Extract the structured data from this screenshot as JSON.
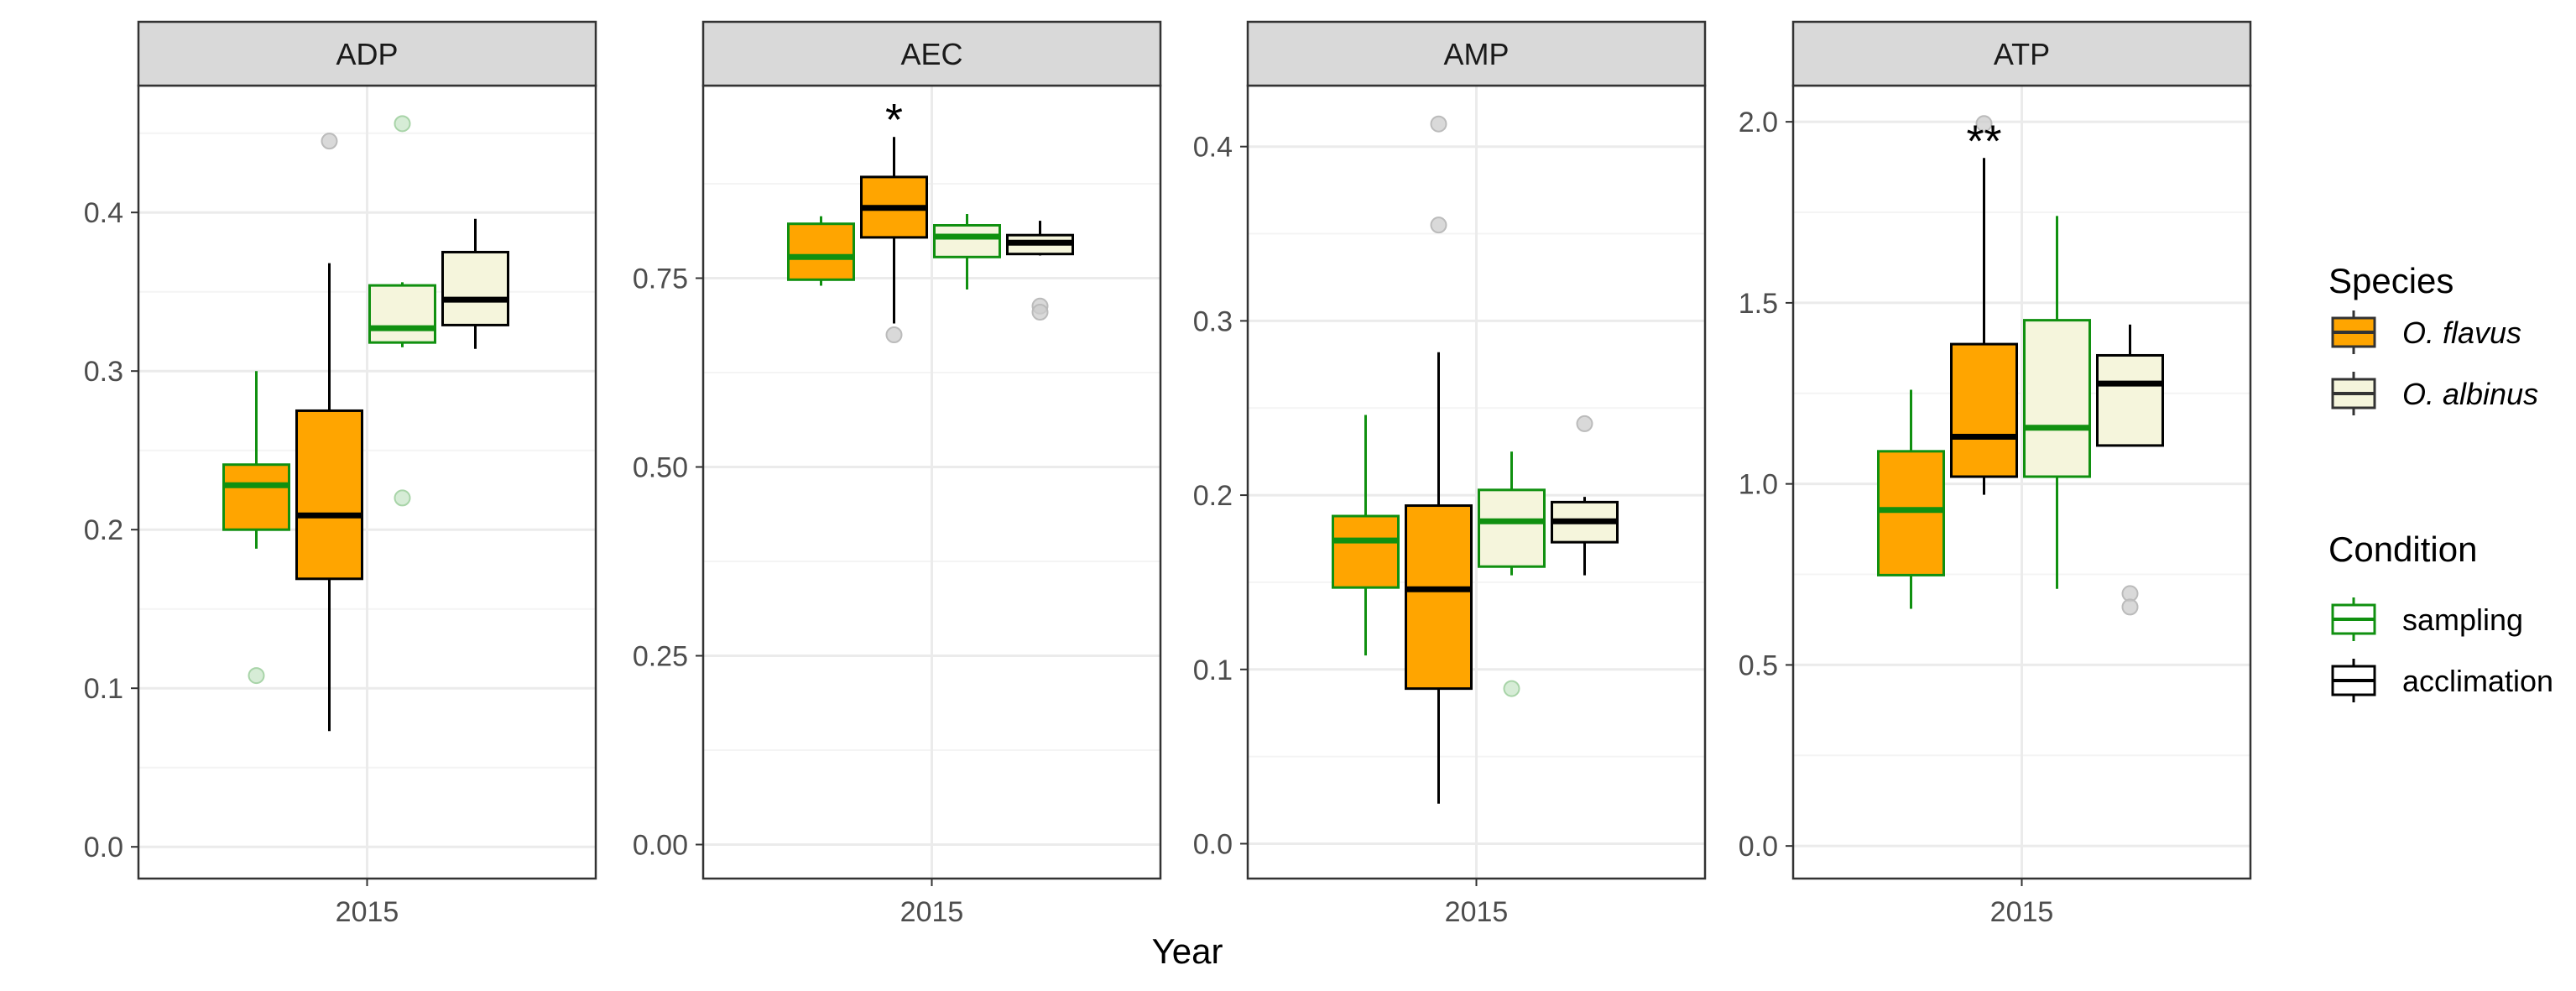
{
  "chart_data": {
    "type": "boxplot",
    "xlabel": "Year",
    "ylabel": "",
    "x_category": "2015",
    "grid": true,
    "legend_placement": "right",
    "colors": {
      "O. flavus": "#FFA500",
      "O. albinus": "#F5F5DC",
      "sampling": "#109010",
      "acclimation": "#000000",
      "outlier_fill": "#cccccc",
      "strip_fill": "#d9d9d9",
      "panel_border": "#333333",
      "grid_major": "#ebebeb",
      "grid_minor": "#f4f4f4"
    },
    "legend": {
      "species_title": "Species",
      "species": [
        {
          "label": "O. flavus",
          "fill": "#FFA500"
        },
        {
          "label": "O. albinus",
          "fill": "#F5F5DC"
        }
      ],
      "condition_title": "Condition",
      "conditions": [
        {
          "label": "sampling",
          "stroke": "#109010"
        },
        {
          "label": "acclimation",
          "stroke": "#000000"
        }
      ]
    },
    "panels": [
      {
        "title": "ADP",
        "ylim": [
          -0.02,
          0.48
        ],
        "yticks": [
          0.0,
          0.1,
          0.2,
          0.3,
          0.4
        ],
        "yticklabels": [
          "0.0",
          "0.1",
          "0.2",
          "0.3",
          "0.4"
        ],
        "significance": "",
        "boxes": [
          {
            "species": "O. flavus",
            "condition": "sampling",
            "min": 0.188,
            "q1": 0.2,
            "median": 0.228,
            "q3": 0.241,
            "max": 0.3,
            "outliers": [
              0.108
            ]
          },
          {
            "species": "O. flavus",
            "condition": "acclimation",
            "min": 0.073,
            "q1": 0.169,
            "median": 0.209,
            "q3": 0.275,
            "max": 0.368,
            "outliers": [
              0.445
            ]
          },
          {
            "species": "O. albinus",
            "condition": "sampling",
            "min": 0.315,
            "q1": 0.318,
            "median": 0.327,
            "q3": 0.354,
            "max": 0.356,
            "outliers": [
              0.456,
              0.22
            ]
          },
          {
            "species": "O. albinus",
            "condition": "acclimation",
            "min": 0.314,
            "q1": 0.329,
            "median": 0.345,
            "q3": 0.375,
            "max": 0.396,
            "outliers": []
          }
        ]
      },
      {
        "title": "AEC",
        "ylim": [
          -0.045,
          1.005
        ],
        "yticks": [
          0.0,
          0.25,
          0.5,
          0.75
        ],
        "yticklabels": [
          "0.00",
          "0.25",
          "0.50",
          "0.75"
        ],
        "significance": "*",
        "boxes": [
          {
            "species": "O. flavus",
            "condition": "sampling",
            "min": 0.74,
            "q1": 0.748,
            "median": 0.778,
            "q3": 0.822,
            "max": 0.832,
            "outliers": []
          },
          {
            "species": "O. flavus",
            "condition": "acclimation",
            "min": 0.69,
            "q1": 0.804,
            "median": 0.843,
            "q3": 0.884,
            "max": 0.937,
            "outliers": [
              0.675
            ]
          },
          {
            "species": "O. albinus",
            "condition": "sampling",
            "min": 0.735,
            "q1": 0.778,
            "median": 0.805,
            "q3": 0.82,
            "max": 0.835,
            "outliers": []
          },
          {
            "species": "O. albinus",
            "condition": "acclimation",
            "min": 0.78,
            "q1": 0.782,
            "median": 0.797,
            "q3": 0.807,
            "max": 0.826,
            "outliers": [
              0.713,
              0.705
            ]
          }
        ]
      },
      {
        "title": "AMP",
        "ylim": [
          -0.02,
          0.435
        ],
        "yticks": [
          0.0,
          0.1,
          0.2,
          0.3,
          0.4
        ],
        "yticklabels": [
          "0.0",
          "0.1",
          "0.2",
          "0.3",
          "0.4"
        ],
        "significance": "",
        "boxes": [
          {
            "species": "O. flavus",
            "condition": "sampling",
            "min": 0.108,
            "q1": 0.147,
            "median": 0.174,
            "q3": 0.188,
            "max": 0.246,
            "outliers": []
          },
          {
            "species": "O. flavus",
            "condition": "acclimation",
            "min": 0.023,
            "q1": 0.089,
            "median": 0.146,
            "q3": 0.194,
            "max": 0.282,
            "outliers": [
              0.413,
              0.355
            ]
          },
          {
            "species": "O. albinus",
            "condition": "sampling",
            "min": 0.154,
            "q1": 0.159,
            "median": 0.185,
            "q3": 0.203,
            "max": 0.225,
            "outliers": [
              0.089
            ]
          },
          {
            "species": "O. albinus",
            "condition": "acclimation",
            "min": 0.154,
            "q1": 0.173,
            "median": 0.185,
            "q3": 0.196,
            "max": 0.199,
            "outliers": [
              0.241
            ]
          }
        ]
      },
      {
        "title": "ATP",
        "ylim": [
          -0.09,
          2.1
        ],
        "yticks": [
          0.0,
          0.5,
          1.0,
          1.5,
          2.0
        ],
        "yticklabels": [
          "0.0",
          "0.5",
          "1.0",
          "1.5",
          "2.0"
        ],
        "significance": "**",
        "boxes": [
          {
            "species": "O. flavus",
            "condition": "sampling",
            "min": 0.655,
            "q1": 0.748,
            "median": 0.928,
            "q3": 1.09,
            "max": 1.26,
            "outliers": []
          },
          {
            "species": "O. flavus",
            "condition": "acclimation",
            "min": 0.97,
            "q1": 1.02,
            "median": 1.13,
            "q3": 1.386,
            "max": 1.9,
            "outliers": [
              1.995
            ]
          },
          {
            "species": "O. albinus",
            "condition": "sampling",
            "min": 0.71,
            "q1": 1.02,
            "median": 1.155,
            "q3": 1.452,
            "max": 1.74,
            "outliers": []
          },
          {
            "species": "O. albinus",
            "condition": "acclimation",
            "min": 1.105,
            "q1": 1.106,
            "median": 1.277,
            "q3": 1.355,
            "max": 1.44,
            "outliers": [
              0.697,
              0.66
            ]
          }
        ]
      }
    ]
  }
}
